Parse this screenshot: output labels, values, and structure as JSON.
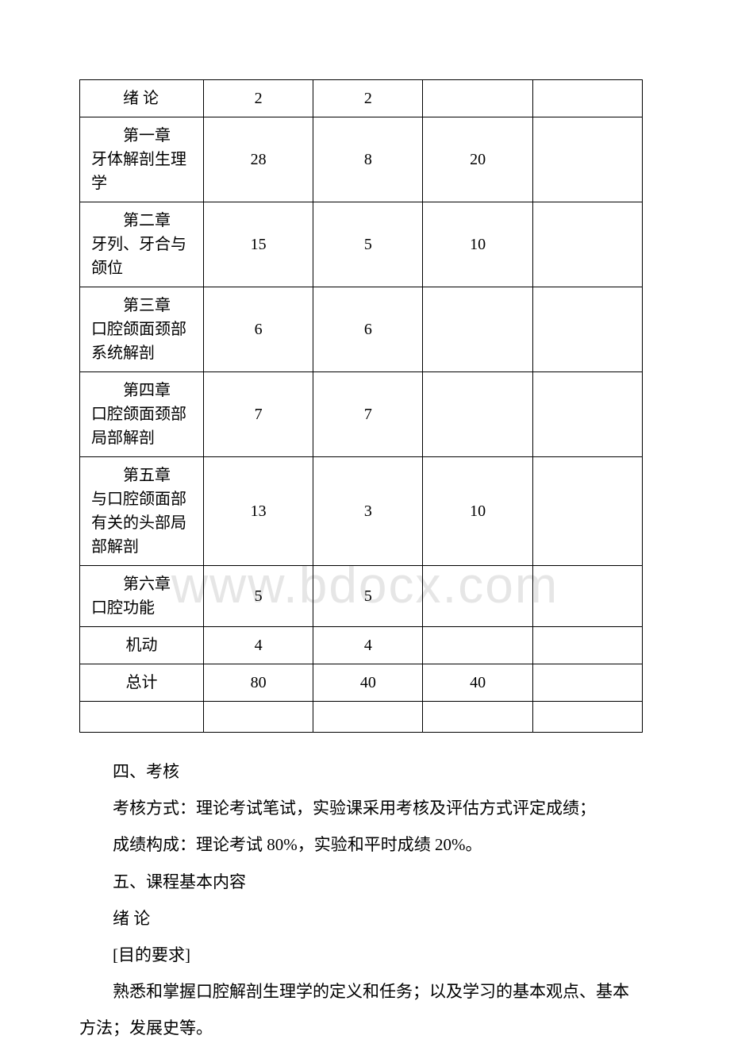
{
  "table": {
    "col_widths": [
      "22%",
      "19.5%",
      "19.5%",
      "19.5%",
      "19.5%"
    ],
    "rows": [
      {
        "label_chapter": "",
        "label_title": "绪 论",
        "single_line": true,
        "c1": "2",
        "c2": "2",
        "c3": "",
        "c4": ""
      },
      {
        "label_chapter": "第一章",
        "label_title": "牙体解剖生理学",
        "c1": "28",
        "c2": "8",
        "c3": "20",
        "c4": ""
      },
      {
        "label_chapter": "第二章",
        "label_title": "牙列、牙合与颌位",
        "c1": "15",
        "c2": "5",
        "c3": "10",
        "c4": ""
      },
      {
        "label_chapter": "第三章",
        "label_title": "口腔颌面颈部系统解剖",
        "c1": "6",
        "c2": "6",
        "c3": "",
        "c4": ""
      },
      {
        "label_chapter": "第四章",
        "label_title": "口腔颌面颈部局部解剖",
        "c1": "7",
        "c2": "7",
        "c3": "",
        "c4": ""
      },
      {
        "label_chapter": "第五章",
        "label_title": "与口腔颌面部有关的头部局部解剖",
        "c1": "13",
        "c2": "3",
        "c3": "10",
        "c4": ""
      },
      {
        "label_chapter": "第六章",
        "label_title": "口腔功能",
        "c1": "5",
        "c2": "5",
        "c3": "",
        "c4": ""
      },
      {
        "label_chapter": "",
        "label_title": "机动",
        "center": true,
        "c1": "4",
        "c2": "4",
        "c3": "",
        "c4": ""
      },
      {
        "label_chapter": "",
        "label_title": "总计",
        "center": true,
        "c1": "80",
        "c2": "40",
        "c3": "40",
        "c4": ""
      },
      {
        "label_chapter": "",
        "label_title": "",
        "empty": true,
        "c1": "",
        "c2": "",
        "c3": "",
        "c4": ""
      }
    ]
  },
  "body": {
    "p1": "四、考核",
    "p2": "考核方式：理论考试笔试，实验课采用考核及评估方式评定成绩；",
    "p3": "成绩构成：理论考试 80%，实验和平时成绩 20%。",
    "p4": "五、课程基本内容",
    "p5": " 绪 论",
    "p6": "[目的要求]",
    "p7": "熟悉和掌握口腔解剖生理学的定义和任务；以及学习的基本观点、基本方法；发展史等。"
  },
  "watermark": "www.bdocx.com",
  "colors": {
    "text": "#000000",
    "border": "#000000",
    "background": "#ffffff",
    "watermark": "#e6e6e6"
  }
}
